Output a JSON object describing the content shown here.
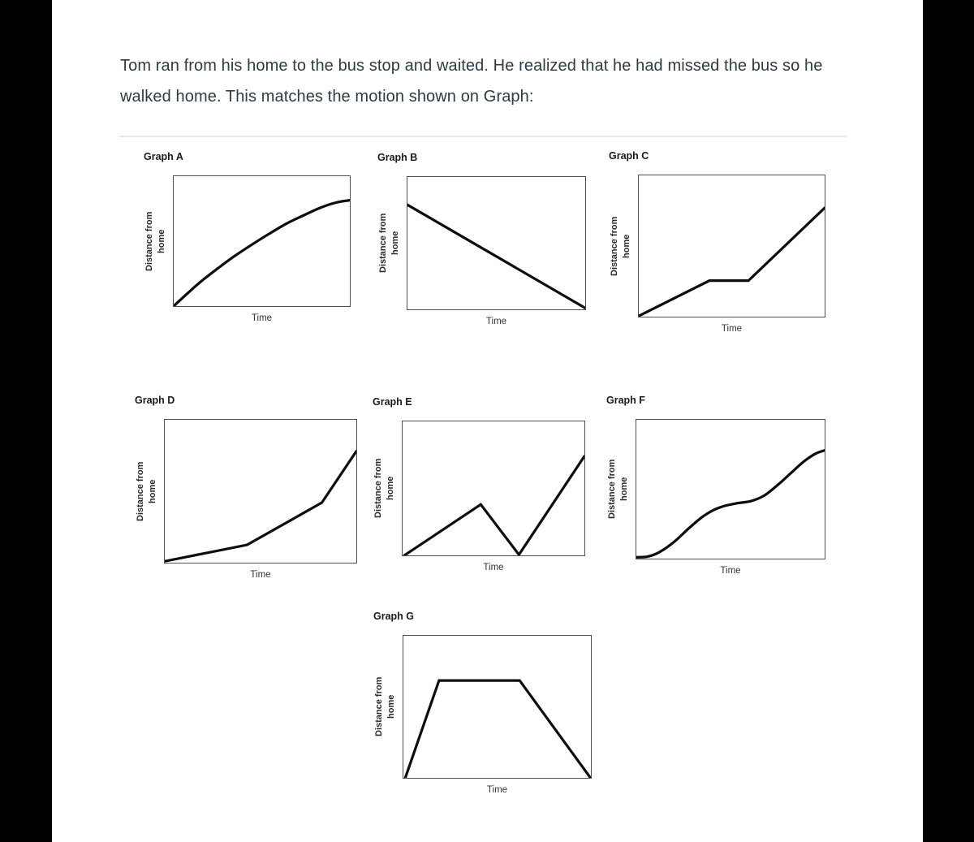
{
  "question": {
    "text": "Tom ran from his home to the bus stop and waited. He realized that he had missed the bus so he walked home.  This matches the motion shown on Graph:"
  },
  "axes": {
    "x_label": "Time",
    "y_label_line1": "Distance from",
    "y_label_line2": "home"
  },
  "colors": {
    "outer_background": "#000000",
    "page_background": "#ffffff",
    "question_text": "#2d3b45",
    "curve": "#0d0d0d",
    "plot_border": "#4f4f4f",
    "divider": "#e9e9e9"
  },
  "chart_data": [
    {
      "id": "A",
      "title": "Graph A",
      "type": "line",
      "xlabel": "Time",
      "ylabel": "Distance from home",
      "axis_ticks": "none (qualitative sketch graph)",
      "smooth": true,
      "points_norm": [
        [
          0,
          0
        ],
        [
          0.08,
          0.1
        ],
        [
          0.16,
          0.195
        ],
        [
          0.25,
          0.29
        ],
        [
          0.34,
          0.38
        ],
        [
          0.44,
          0.47
        ],
        [
          0.54,
          0.555
        ],
        [
          0.64,
          0.635
        ],
        [
          0.74,
          0.7
        ],
        [
          0.82,
          0.75
        ],
        [
          0.89,
          0.785
        ],
        [
          0.95,
          0.805
        ],
        [
          1,
          0.815
        ]
      ],
      "shape_description": "Smooth concave-down curve: distance rises quickly from zero then levels off near the top right."
    },
    {
      "id": "B",
      "title": "Graph B",
      "type": "line",
      "xlabel": "Time",
      "ylabel": "Distance from home",
      "axis_ticks": "none (qualitative sketch graph)",
      "smooth": false,
      "points_norm": [
        [
          0,
          0.79
        ],
        [
          1,
          0.01
        ]
      ],
      "shape_description": "Straight line decreasing steadily from upper left to zero at the lower right corner."
    },
    {
      "id": "C",
      "title": "Graph C",
      "type": "line",
      "xlabel": "Time",
      "ylabel": "Distance from home",
      "axis_ticks": "none (qualitative sketch graph)",
      "smooth": false,
      "points_norm": [
        [
          0,
          0.005
        ],
        [
          0.38,
          0.255
        ],
        [
          0.59,
          0.255
        ],
        [
          1,
          0.77
        ]
      ],
      "shape_description": "Rises steadily from zero, stays constant (flat) in the middle, then rises more steeply to the upper right."
    },
    {
      "id": "D",
      "title": "Graph D",
      "type": "line",
      "xlabel": "Time",
      "ylabel": "Distance from home",
      "axis_ticks": "none (qualitative sketch graph)",
      "smooth": false,
      "points_norm": [
        [
          0,
          0.01
        ],
        [
          0.43,
          0.125
        ],
        [
          0.82,
          0.42
        ],
        [
          1,
          0.78
        ]
      ],
      "shape_description": "Rises slowly at first, then faster, then very steeply near the right edge (increasing slope)."
    },
    {
      "id": "E",
      "title": "Graph E",
      "type": "line",
      "xlabel": "Time",
      "ylabel": "Distance from home",
      "axis_ticks": "none (qualitative sketch graph)",
      "smooth": false,
      "points_norm": [
        [
          0.01,
          0
        ],
        [
          0.43,
          0.38
        ],
        [
          0.64,
          0.005
        ],
        [
          1,
          0.74
        ]
      ],
      "shape_description": "Rises to a mid-height peak, falls back to zero, then rises steeply to the upper right."
    },
    {
      "id": "F",
      "title": "Graph F",
      "type": "line",
      "xlabel": "Time",
      "ylabel": "Distance from home",
      "axis_ticks": "none (qualitative sketch graph)",
      "smooth": true,
      "points_norm": [
        [
          0,
          0.01
        ],
        [
          0.06,
          0.015
        ],
        [
          0.12,
          0.045
        ],
        [
          0.2,
          0.12
        ],
        [
          0.28,
          0.22
        ],
        [
          0.35,
          0.3
        ],
        [
          0.41,
          0.35
        ],
        [
          0.47,
          0.38
        ],
        [
          0.54,
          0.4
        ],
        [
          0.61,
          0.415
        ],
        [
          0.68,
          0.455
        ],
        [
          0.75,
          0.53
        ],
        [
          0.82,
          0.615
        ],
        [
          0.89,
          0.7
        ],
        [
          0.95,
          0.755
        ],
        [
          1,
          0.78
        ]
      ],
      "shape_description": "Smooth S-curve up to a mid-level plateau, then a second smooth rise toward the upper right."
    },
    {
      "id": "G",
      "title": "Graph G",
      "type": "line",
      "xlabel": "Time",
      "ylabel": "Distance from home",
      "axis_ticks": "none (qualitative sketch graph)",
      "smooth": false,
      "points_norm": [
        [
          0.01,
          0
        ],
        [
          0.19,
          0.685
        ],
        [
          0.62,
          0.685
        ],
        [
          0.995,
          0.005
        ]
      ],
      "shape_description": "Trapezoid: rises steeply from zero, stays constant at a high level, then decreases back down to zero."
    }
  ]
}
